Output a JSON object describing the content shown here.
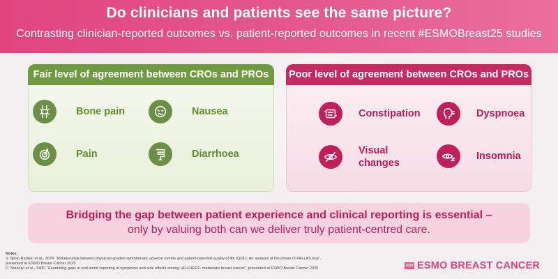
{
  "header": {
    "title": "Do clinicians and patients see the same picture?",
    "subtitle": "Contrasting clinician-reported outcomes vs. patient-reported outcomes in recent #ESMOBreast25 studies"
  },
  "fair_panel": {
    "title": "Fair level of agreement between CROs and PROs",
    "items": [
      {
        "label": "Bone pain",
        "icon": "bone-icon"
      },
      {
        "label": "Nausea",
        "icon": "nauseous-face-icon"
      },
      {
        "label": "Pain",
        "icon": "pain-target-icon"
      },
      {
        "label": "Diarrhoea",
        "icon": "intestine-icon"
      }
    ]
  },
  "poor_panel": {
    "title": "Poor level of agreement between CROs and PROs",
    "items": [
      {
        "label": "Constipation",
        "icon": "bowel-icon"
      },
      {
        "label": "Dyspnoea",
        "icon": "breathing-head-icon"
      },
      {
        "label_line1": "Visual",
        "label_line2": "changes",
        "icon": "eye-icon"
      },
      {
        "label": "Insomnia",
        "icon": "sleepless-eye-icon"
      }
    ]
  },
  "banner": {
    "line1": "Bridging the gap between patient experience and clinical reporting is essential –",
    "line2": "only by valuing both can we deliver truly patient-centred care."
  },
  "notes": {
    "title": "Notes:",
    "ref1_line1": "V. Bjelic-Radisic et al., 307P, “Relationship between physician-graded symptomatic adverse events and patient-reported quality of life (QOL): An analysis of the phase III PALLAS trial”,",
    "ref1_line2": "presented at ESMO Breast Cancer 2025",
    "ref2_line1": "C. Nkukuyi et al., 340P, “Examining gaps in real-world reporting of symptoms and side effects among HR+/HER2- metastatic breast cancer”, presented at ESMO Breast Cancer 2025"
  },
  "logo": {
    "year": "2025",
    "text": "ESMO BREAST CANCER"
  },
  "colors": {
    "header": "#e0457e",
    "fair_accent": "#6f9a3f",
    "poor_accent": "#c52a62"
  }
}
